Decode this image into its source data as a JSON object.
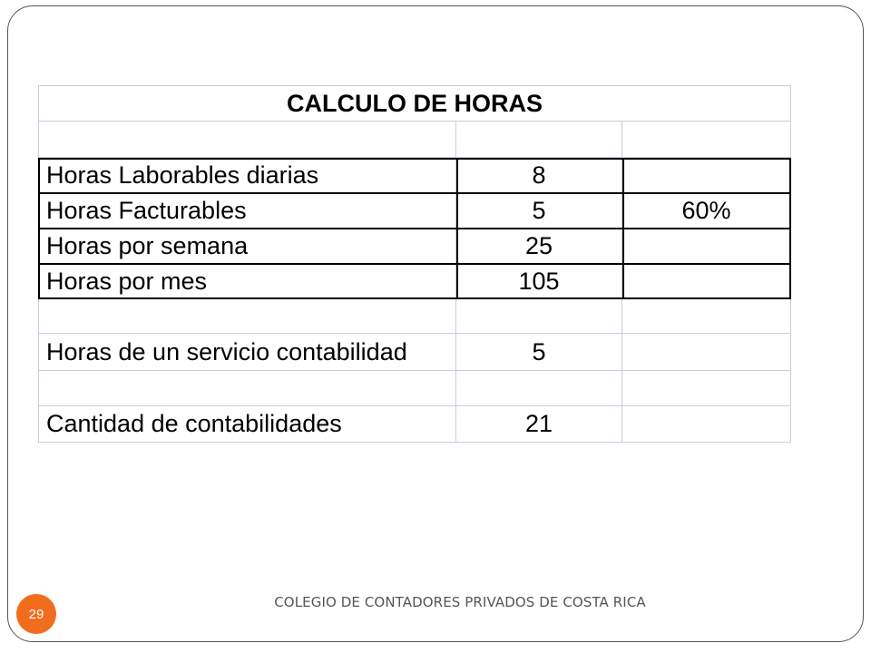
{
  "table": {
    "title": "CALCULO DE HORAS",
    "rows": [
      {
        "label": "",
        "value": "",
        "extra": ""
      },
      {
        "label": "Horas Laborables diarias",
        "value": "8",
        "extra": ""
      },
      {
        "label": "Horas Facturables",
        "value": "5",
        "extra": "60%"
      },
      {
        "label": "Horas por semana",
        "value": "25",
        "extra": ""
      },
      {
        "label": "Horas por mes",
        "value": "105",
        "extra": ""
      },
      {
        "label": "",
        "value": "",
        "extra": ""
      },
      {
        "label": "Horas de un servicio contabilidad",
        "value": "5",
        "extra": ""
      },
      {
        "label": "",
        "value": "",
        "extra": ""
      },
      {
        "label": "Cantidad de contabilidades",
        "value": "21",
        "extra": ""
      }
    ]
  },
  "footer": {
    "page_number": "29",
    "organization": "COLEGIO DE CONTADORES PRIVADOS DE COSTA RICA"
  },
  "colors": {
    "badge": "#f26c1d",
    "frame": "#555555",
    "gridline": "#c7cfdc"
  }
}
